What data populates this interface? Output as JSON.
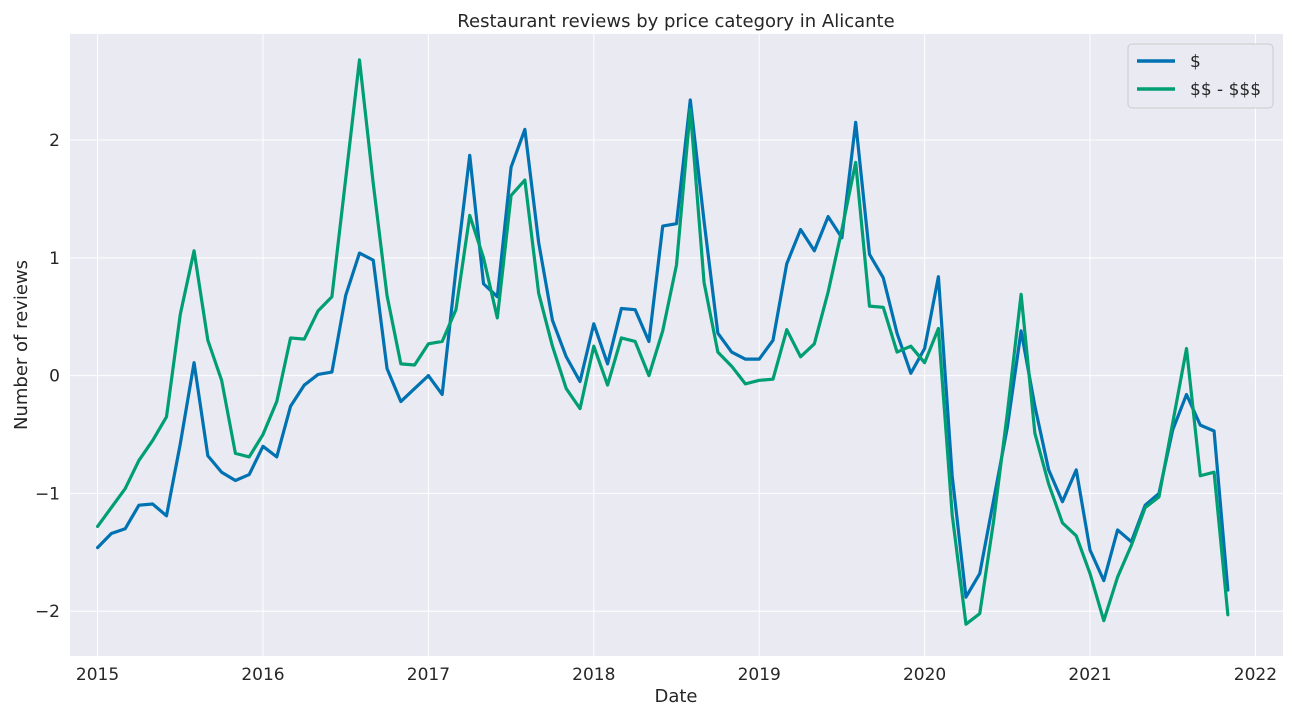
{
  "chart_data": {
    "type": "line",
    "title": "Restaurant reviews by price category in Alicante",
    "xlabel": "Date",
    "ylabel": "Number of reviews",
    "x_axis": "date",
    "xlim": [
      "2014-11-01",
      "2022-03-01"
    ],
    "ylim": [
      -2.38,
      2.9
    ],
    "x_ticks": [
      "2015",
      "2016",
      "2017",
      "2018",
      "2019",
      "2020",
      "2021",
      "2022"
    ],
    "y_ticks": [
      -2,
      -1,
      0,
      1,
      2
    ],
    "y_tick_labels": [
      "−2",
      "−1",
      "0",
      "1",
      "2"
    ],
    "grid": true,
    "background": "#eaeaf2",
    "legend_position": "top-right",
    "x": [
      "2015-01",
      "2015-02",
      "2015-03",
      "2015-04",
      "2015-05",
      "2015-06",
      "2015-07",
      "2015-08",
      "2015-09",
      "2015-10",
      "2015-11",
      "2015-12",
      "2016-01",
      "2016-02",
      "2016-03",
      "2016-04",
      "2016-05",
      "2016-06",
      "2016-07",
      "2016-08",
      "2016-09",
      "2016-10",
      "2016-11",
      "2016-12",
      "2017-01",
      "2017-02",
      "2017-03",
      "2017-04",
      "2017-05",
      "2017-06",
      "2017-07",
      "2017-08",
      "2017-09",
      "2017-10",
      "2017-11",
      "2017-12",
      "2018-01",
      "2018-02",
      "2018-03",
      "2018-04",
      "2018-05",
      "2018-06",
      "2018-07",
      "2018-08",
      "2018-09",
      "2018-10",
      "2018-11",
      "2018-12",
      "2019-01",
      "2019-02",
      "2019-03",
      "2019-04",
      "2019-05",
      "2019-06",
      "2019-07",
      "2019-08",
      "2019-09",
      "2019-10",
      "2019-11",
      "2019-12",
      "2020-01",
      "2020-02",
      "2020-03",
      "2020-04",
      "2020-05",
      "2020-06",
      "2020-07",
      "2020-08",
      "2020-09",
      "2020-10",
      "2020-11",
      "2020-12",
      "2021-01",
      "2021-02",
      "2021-03",
      "2021-04",
      "2021-05",
      "2021-06",
      "2021-07",
      "2021-08",
      "2021-09",
      "2021-10",
      "2021-11"
    ],
    "series": [
      {
        "name": "$",
        "color": "#0072b2",
        "values": [
          -1.46,
          -1.34,
          -1.3,
          -1.1,
          -1.09,
          -1.19,
          -0.58,
          0.11,
          -0.68,
          -0.82,
          -0.89,
          -0.84,
          -0.6,
          -0.69,
          -0.26,
          -0.08,
          0.01,
          0.03,
          0.68,
          1.04,
          0.98,
          0.06,
          -0.22,
          -0.11,
          0.0,
          -0.16,
          0.9,
          1.87,
          0.78,
          0.67,
          1.77,
          2.09,
          1.13,
          0.47,
          0.16,
          -0.05,
          0.44,
          0.1,
          0.57,
          0.56,
          0.29,
          1.27,
          1.29,
          2.34,
          1.31,
          0.36,
          0.2,
          0.14,
          0.14,
          0.3,
          0.95,
          1.24,
          1.06,
          1.35,
          1.17,
          2.15,
          1.03,
          0.83,
          0.36,
          0.02,
          0.23,
          0.84,
          -0.85,
          -1.88,
          -1.68,
          -1.06,
          -0.44,
          0.38,
          -0.26,
          -0.8,
          -1.07,
          -0.8,
          -1.48,
          -1.74,
          -1.31,
          -1.41,
          -1.1,
          -1.0,
          -0.46,
          -0.16,
          -0.42,
          -0.47,
          -1.82
        ]
      },
      {
        "name": "$$ - $$$",
        "color": "#009e73",
        "values": [
          -1.28,
          -1.12,
          -0.96,
          -0.72,
          -0.55,
          -0.35,
          0.52,
          1.06,
          0.3,
          -0.04,
          -0.66,
          -0.69,
          -0.5,
          -0.22,
          0.32,
          0.31,
          0.55,
          0.67,
          1.67,
          2.68,
          1.63,
          0.68,
          0.1,
          0.09,
          0.27,
          0.29,
          0.56,
          1.36,
          1.0,
          0.49,
          1.53,
          1.66,
          0.7,
          0.25,
          -0.11,
          -0.28,
          0.25,
          -0.08,
          0.32,
          0.29,
          0.0,
          0.38,
          0.94,
          2.26,
          0.79,
          0.2,
          0.08,
          -0.07,
          -0.04,
          -0.03,
          0.39,
          0.16,
          0.27,
          0.71,
          1.24,
          1.81,
          0.59,
          0.58,
          0.2,
          0.25,
          0.11,
          0.4,
          -1.18,
          -2.11,
          -2.02,
          -1.24,
          -0.32,
          0.69,
          -0.49,
          -0.92,
          -1.25,
          -1.36,
          -1.68,
          -2.08,
          -1.71,
          -1.44,
          -1.12,
          -1.03,
          -0.4,
          0.23,
          -0.85,
          -0.82,
          -2.03
        ]
      }
    ]
  }
}
